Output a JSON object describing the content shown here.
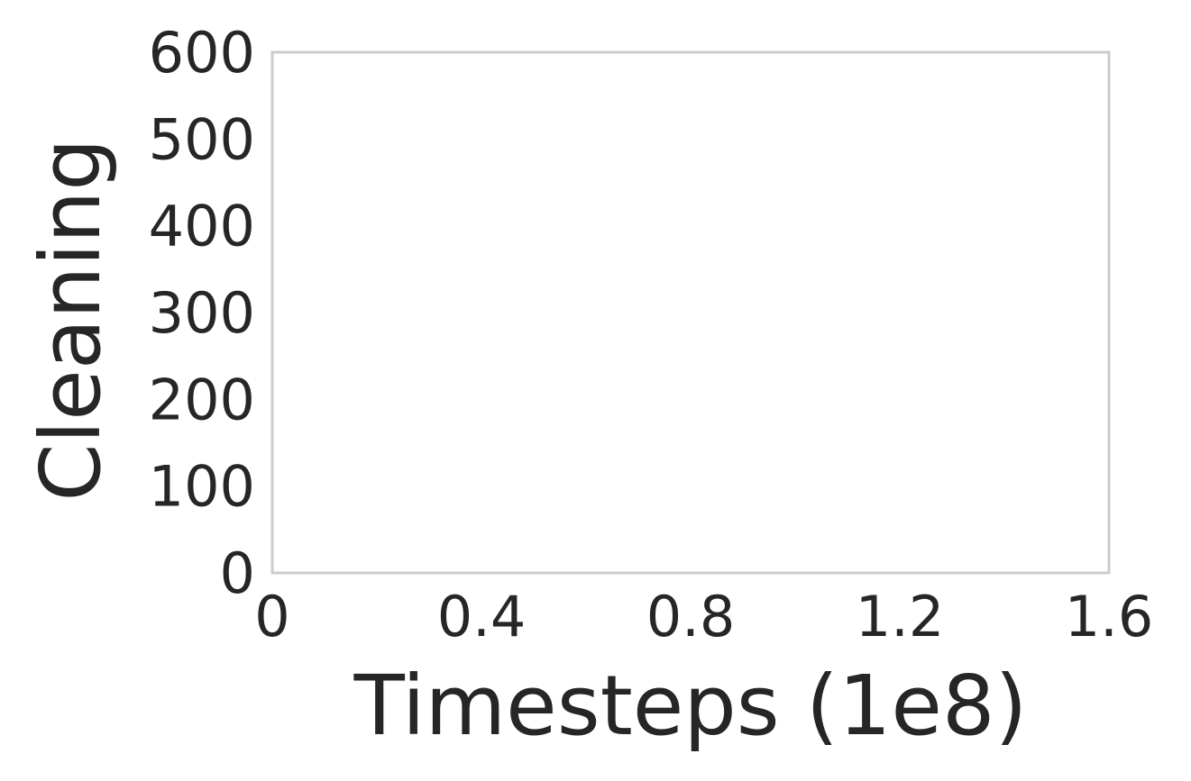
{
  "chart_data": {
    "type": "line",
    "title": "",
    "xlabel": "Timesteps (1e8)",
    "ylabel": "Cleaning",
    "xlim": [
      0,
      1.6
    ],
    "ylim": [
      0,
      600
    ],
    "xticks": [
      0,
      0.4,
      0.8,
      1.2,
      1.6
    ],
    "xtick_labels": [
      "0",
      "0.4",
      "0.8",
      "1.2",
      "1.6"
    ],
    "yticks": [
      0,
      100,
      200,
      300,
      400,
      500,
      600
    ],
    "ytick_labels": [
      "0",
      "100",
      "200",
      "300",
      "400",
      "500",
      "600"
    ],
    "grid": true,
    "series": []
  }
}
